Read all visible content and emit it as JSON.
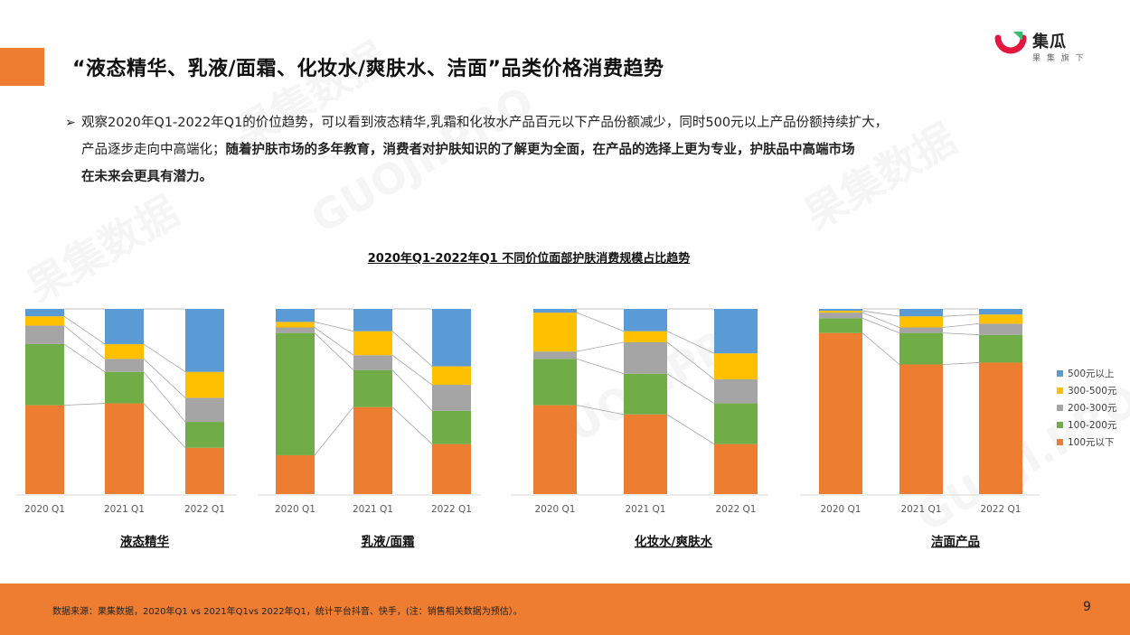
{
  "header": {
    "title": "“液态精华、乳液/面霜、化妆水/爽肤水、洁面”品类价格消费趋势"
  },
  "logo": {
    "name": "集瓜",
    "sub": "果 集 旗 下"
  },
  "summary": {
    "arrow": "➢",
    "line1": "观察2020年Q1-2022年Q1的价位趋势，可以看到液态精华,乳霜和化妆水产品百元以下产品份额减少，同时500元以上产品份额持续扩大，",
    "line2_normal": "产品逐步走向中高端化；",
    "line2_bold": "随着护肤市场的多年教育，消费者对护肤知识的了解更为全面，在产品的选择上更为专业，护肤品中高端市场",
    "line3_bold": "在未来会更具有潜力。"
  },
  "chart_data": {
    "type": "bar",
    "stacked": true,
    "percent": true,
    "title": "2020年Q1-2022年Q1 不同价位面部护肤消费规模占比趋势",
    "categories": [
      "2020 Q1",
      "2021 Q1",
      "2022 Q1"
    ],
    "legend": [
      "500元以上",
      "300-500元",
      "200-300元",
      "100-200元",
      "100元以下"
    ],
    "legend_position": "right",
    "colors": {
      "500元以上": "#5b9bd5",
      "300-500元": "#ffc000",
      "200-300元": "#a5a5a5",
      "100-200元": "#70ad47",
      "100元以下": "#ed7d31"
    },
    "panels": [
      {
        "name": "液态精华",
        "values": [
          {
            "100元以下": 48,
            "100-200元": 33,
            "200-300元": 10,
            "300-500元": 5,
            "500元以上": 4
          },
          {
            "100元以下": 49,
            "100-200元": 17,
            "200-300元": 7,
            "300-500元": 8,
            "500元以上": 19
          },
          {
            "100元以下": 25,
            "100-200元": 14,
            "200-300元": 13,
            "300-500元": 14,
            "500元以上": 34
          }
        ]
      },
      {
        "name": "乳液/面霜",
        "values": [
          {
            "100元以下": 21,
            "100-200元": 66,
            "200-300元": 3,
            "300-500元": 3,
            "500元以上": 7
          },
          {
            "100元以下": 47,
            "100-200元": 20,
            "200-300元": 8,
            "300-500元": 13,
            "500元以上": 12
          },
          {
            "100元以下": 27,
            "100-200元": 18,
            "200-300元": 14,
            "300-500元": 10,
            "500元以上": 31
          }
        ]
      },
      {
        "name": "化妆水/爽肤水",
        "values": [
          {
            "100元以下": 48,
            "100-200元": 25,
            "200-300元": 4,
            "300-500元": 21,
            "500元以上": 2
          },
          {
            "100元以下": 43,
            "100-200元": 22,
            "200-300元": 17,
            "300-500元": 6,
            "500元以上": 12
          },
          {
            "100元以下": 27,
            "100-200元": 22,
            "200-300元": 13,
            "300-500元": 14,
            "500元以上": 24
          }
        ]
      },
      {
        "name": "洁面产品",
        "values": [
          {
            "100元以下": 87,
            "100-200元": 8,
            "200-300元": 3,
            "300-500元": 1,
            "500元以上": 1
          },
          {
            "100元以下": 70,
            "100-200元": 17,
            "200-300元": 3,
            "300-500元": 6,
            "500元以上": 4
          },
          {
            "100元以下": 71,
            "100-200元": 15,
            "200-300元": 6,
            "300-500元": 5,
            "500元以上": 3
          }
        ]
      }
    ]
  },
  "watermark": {
    "text_cn": "果集数据",
    "text_en": "GUOJI.PRO"
  },
  "footer": {
    "source": "数据来源：果集数据，2020年Q1 vs 2021年Q1vs 2022年Q1，统计平台抖音、快手，(注：销售相关数据为预估）。",
    "page": "9"
  }
}
